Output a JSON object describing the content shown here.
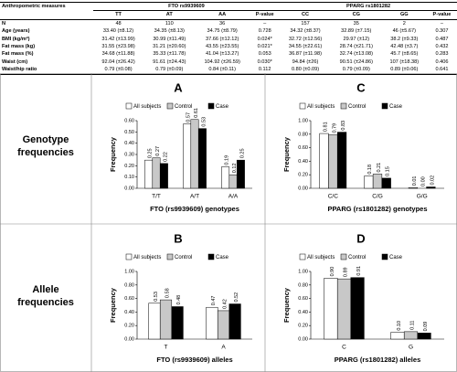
{
  "table": {
    "header_groups": [
      "Anthropometric measures",
      "FTO rs9939609",
      "PPARG rs1801282"
    ],
    "columns": [
      "TT",
      "AT",
      "AA",
      "P-value",
      "CC",
      "CG",
      "GG",
      "P-value"
    ],
    "rows": [
      [
        "N",
        "48",
        "110",
        "36",
        "–",
        "157",
        "35",
        "2",
        "–"
      ],
      [
        "Age (years)",
        "33.40 (±8.12)",
        "34.35 (±8.13)",
        "34.75 (±8.79)",
        "0.728",
        "34.32 (±8.37)",
        "32.89 (±7.15)",
        "46 (±5.67)",
        "0.307"
      ],
      [
        "BMI (kg/m²)",
        "31.42 (±13.99)",
        "30.99 (±11.49)",
        "37.66 (±12.12)",
        "0.024*",
        "32.72 (±12.56)",
        "29.97 (±12)",
        "38.2 (±9.33)",
        "0.487"
      ],
      [
        "Fat mass (kg)",
        "31.55 (±23.98)",
        "31.21 (±20.60)",
        "43.55 (±23.55)",
        "0.021*",
        "34.55 (±22.61)",
        "28.74 (±21.71)",
        "42.48 (±3.7)",
        "0.432"
      ],
      [
        "Fat mass (%)",
        "34.68 (±11.88)",
        "35.33 (±11.78)",
        "41.04 (±13.27)",
        "0.053",
        "36.87 (±11.98)",
        "32.74 (±13.08)",
        "45.7 (±8.65)",
        "0.283"
      ],
      [
        "Waist (cm)",
        "92.04 (±26.42)",
        "91.61 (±24.43)",
        "104.92 (±26.59)",
        "0.030*",
        "94.84 (±26)",
        "90.51 (±24.86)",
        "107 (±18.38)",
        "0.406"
      ],
      [
        "Waist/hip ratio",
        "0.79 (±0.08)",
        "0.79 (±0.09)",
        "0.84 (±0.11)",
        "0.112",
        "0.80 (±0.09)",
        "0.79 (±0.09)",
        "0.89 (±0.06)",
        "0.641"
      ]
    ]
  },
  "row_labels": [
    "Genotype frequencies",
    "Allele frequencies"
  ],
  "chart_data": [
    {
      "type": "bar",
      "title": "A",
      "ylabel": "Frequency",
      "xlabel": "FTO (rs9939609) genotypes",
      "categories": [
        "T/T",
        "A/T",
        "A/A"
      ],
      "series": [
        {
          "name": "All subjects",
          "color": "#ffffff",
          "values": [
            0.25,
            0.57,
            0.19
          ],
          "value_labels": [
            "0.25",
            "0.57",
            "0.19"
          ]
        },
        {
          "name": "Control",
          "color": "#c8c8c8",
          "values": [
            0.27,
            0.61,
            0.12
          ],
          "value_labels": [
            "0.27",
            "0.61",
            "0.12"
          ]
        },
        {
          "name": "Case",
          "color": "#000000",
          "values": [
            0.22,
            0.53,
            0.25
          ],
          "value_labels": [
            "0.22",
            "0.53",
            "0.25"
          ]
        }
      ],
      "ylim": [
        0,
        0.6
      ],
      "yticks": [
        {
          "value": 0,
          "label": "0.00"
        },
        {
          "value": 0.1,
          "label": "0.10"
        },
        {
          "value": 0.2,
          "label": "0.20"
        },
        {
          "value": 0.3,
          "label": "0.30"
        },
        {
          "value": 0.4,
          "label": "0.40"
        },
        {
          "value": 0.5,
          "label": "0.50"
        },
        {
          "value": 0.6,
          "label": "0.60"
        }
      ]
    },
    {
      "type": "bar",
      "title": "C",
      "ylabel": "Frequency",
      "xlabel": "PPARG (rs1801282) genotypes",
      "categories": [
        "C/C",
        "C/G",
        "G/G"
      ],
      "series": [
        {
          "name": "All subjects",
          "color": "#ffffff",
          "values": [
            0.81,
            0.18,
            0.01
          ],
          "value_labels": [
            "0.81",
            "0.18",
            "0.01"
          ]
        },
        {
          "name": "Control",
          "color": "#c8c8c8",
          "values": [
            0.79,
            0.21,
            0
          ],
          "value_labels": [
            "0.79",
            "0.21",
            "0.00"
          ]
        },
        {
          "name": "Case",
          "color": "#000000",
          "values": [
            0.83,
            0.15,
            0.02
          ],
          "value_labels": [
            "0.83",
            "0.15",
            "0.02"
          ]
        }
      ],
      "ylim": [
        0,
        1
      ],
      "yticks": [
        {
          "value": 0,
          "label": "0.00"
        },
        {
          "value": 0.2,
          "label": "0.20"
        },
        {
          "value": 0.4,
          "label": "0.40"
        },
        {
          "value": 0.6,
          "label": "0.60"
        },
        {
          "value": 0.8,
          "label": "0.80"
        },
        {
          "value": 1,
          "label": "1.00"
        }
      ]
    },
    {
      "type": "bar",
      "title": "B",
      "ylabel": "Frequency",
      "xlabel": "FTO (rs9939609) alleles",
      "categories": [
        "T",
        "A"
      ],
      "series": [
        {
          "name": "All subjects",
          "color": "#ffffff",
          "values": [
            0.53,
            0.47
          ],
          "value_labels": [
            "0.53",
            "0.47"
          ]
        },
        {
          "name": "Control",
          "color": "#c8c8c8",
          "values": [
            0.58,
            0.42
          ],
          "value_labels": [
            "0.58",
            "0.42"
          ]
        },
        {
          "name": "Case",
          "color": "#000000",
          "values": [
            0.48,
            0.52
          ],
          "value_labels": [
            "0.48",
            "0.52"
          ]
        }
      ],
      "ylim": [
        0,
        1
      ],
      "yticks": [
        {
          "value": 0,
          "label": "0.00"
        },
        {
          "value": 0.2,
          "label": "0.20"
        },
        {
          "value": 0.4,
          "label": "0.40"
        },
        {
          "value": 0.6,
          "label": "0.60"
        },
        {
          "value": 0.8,
          "label": "0.80"
        },
        {
          "value": 1,
          "label": "1.00"
        }
      ]
    },
    {
      "type": "bar",
      "title": "D",
      "ylabel": "Frequency",
      "xlabel": "PPARG (rs1801282) alleles",
      "categories": [
        "C",
        "G"
      ],
      "series": [
        {
          "name": "All subjects",
          "color": "#ffffff",
          "values": [
            0.9,
            0.1
          ],
          "value_labels": [
            "0.90",
            "0.10"
          ]
        },
        {
          "name": "Control",
          "color": "#c8c8c8",
          "values": [
            0.89,
            0.11
          ],
          "value_labels": [
            "0.89",
            "0.11"
          ]
        },
        {
          "name": "Case",
          "color": "#000000",
          "values": [
            0.91,
            0.09
          ],
          "value_labels": [
            "0.91",
            "0.09"
          ]
        }
      ],
      "ylim": [
        0,
        1
      ],
      "yticks": [
        {
          "value": 0,
          "label": "0.00"
        },
        {
          "value": 0.2,
          "label": "0.20"
        },
        {
          "value": 0.4,
          "label": "0.40"
        },
        {
          "value": 0.6,
          "label": "0.60"
        },
        {
          "value": 0.8,
          "label": "0.80"
        },
        {
          "value": 1,
          "label": "1.00"
        }
      ]
    }
  ]
}
